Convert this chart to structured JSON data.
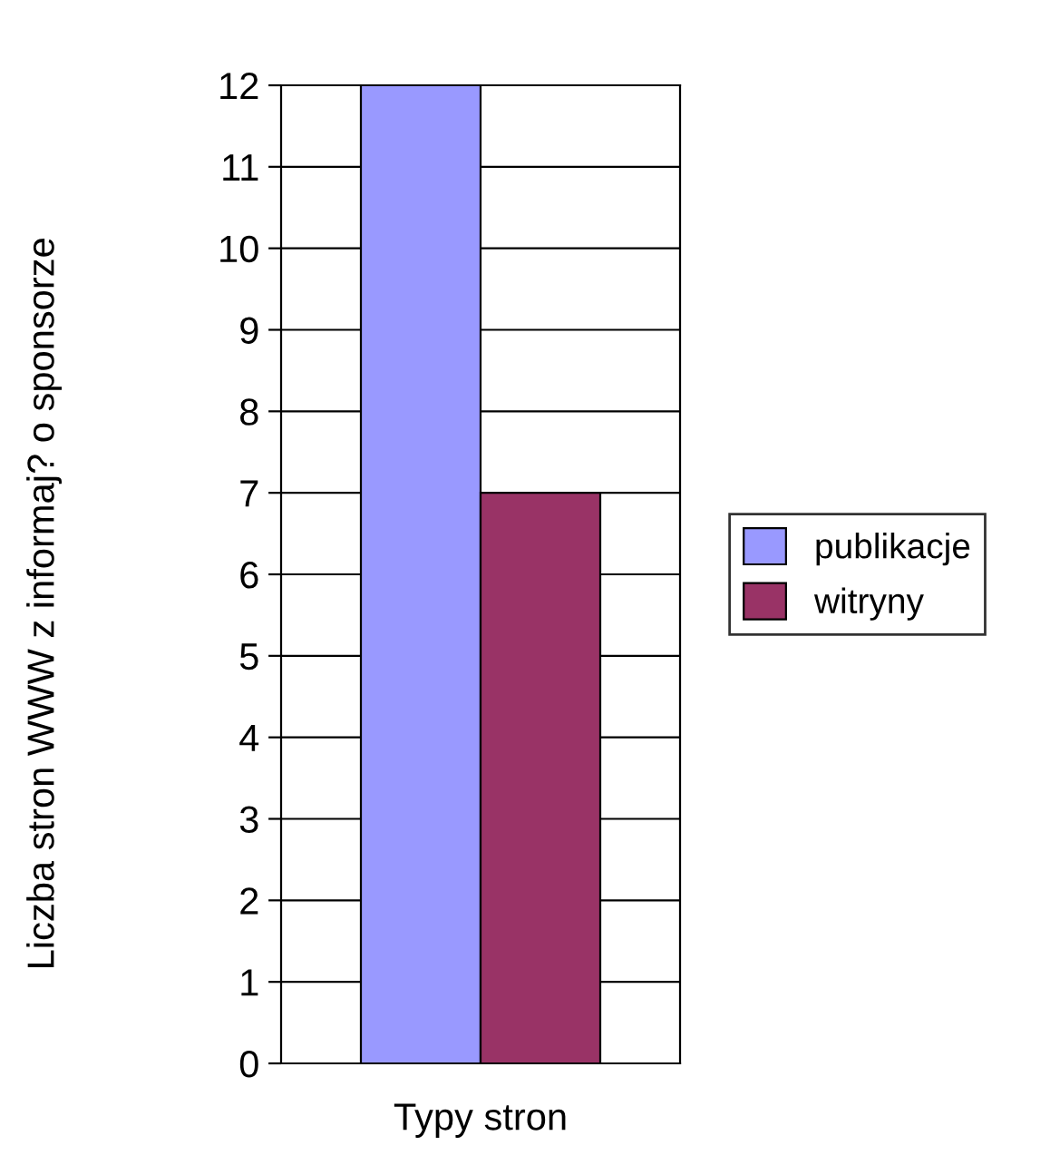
{
  "chart_data": {
    "type": "bar",
    "ylabel": "Liczba stron WWW z informaj? o sponsorze",
    "xlabel": "Typy stron",
    "categories": [
      null
    ],
    "series": [
      {
        "name": "publikacje",
        "color": "#9999ff",
        "values": [
          12
        ]
      },
      {
        "name": "witryny",
        "color": "#993366",
        "values": [
          7
        ]
      }
    ],
    "ylim": [
      0,
      12
    ],
    "yticks": [
      0,
      1,
      2,
      3,
      4,
      5,
      6,
      7,
      8,
      9,
      10,
      11,
      12
    ],
    "grid": "y",
    "legend": "right"
  }
}
